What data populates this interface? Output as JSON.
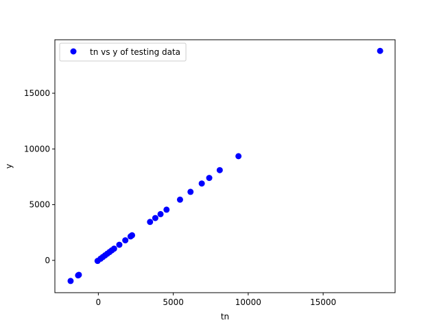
{
  "chart_data": {
    "type": "scatter",
    "title": "",
    "xlabel": "tn",
    "ylabel": "y",
    "xlim": [
      -2900,
      19800
    ],
    "ylim": [
      -2900,
      19800
    ],
    "xticks": [
      0,
      5000,
      10000,
      15000
    ],
    "yticks": [
      0,
      5000,
      10000,
      15000
    ],
    "grid": false,
    "legend_position": "top-left",
    "series": [
      {
        "name": "tn vs y of testing data",
        "color": "#0000ff",
        "points": [
          {
            "x": -1850,
            "y": -1850
          },
          {
            "x": -1350,
            "y": -1350
          },
          {
            "x": -1300,
            "y": -1300
          },
          {
            "x": -50,
            "y": -50
          },
          {
            "x": 150,
            "y": 150
          },
          {
            "x": 300,
            "y": 300
          },
          {
            "x": 450,
            "y": 450
          },
          {
            "x": 600,
            "y": 600
          },
          {
            "x": 750,
            "y": 750
          },
          {
            "x": 900,
            "y": 900
          },
          {
            "x": 1050,
            "y": 1050
          },
          {
            "x": 1400,
            "y": 1400
          },
          {
            "x": 1800,
            "y": 1800
          },
          {
            "x": 2150,
            "y": 2150
          },
          {
            "x": 2250,
            "y": 2250
          },
          {
            "x": 3450,
            "y": 3450
          },
          {
            "x": 3800,
            "y": 3800
          },
          {
            "x": 4150,
            "y": 4150
          },
          {
            "x": 4550,
            "y": 4550
          },
          {
            "x": 5450,
            "y": 5450
          },
          {
            "x": 6150,
            "y": 6150
          },
          {
            "x": 6900,
            "y": 6900
          },
          {
            "x": 7400,
            "y": 7400
          },
          {
            "x": 8100,
            "y": 8100
          },
          {
            "x": 9350,
            "y": 9350
          },
          {
            "x": 18800,
            "y": 18800
          }
        ]
      }
    ]
  }
}
